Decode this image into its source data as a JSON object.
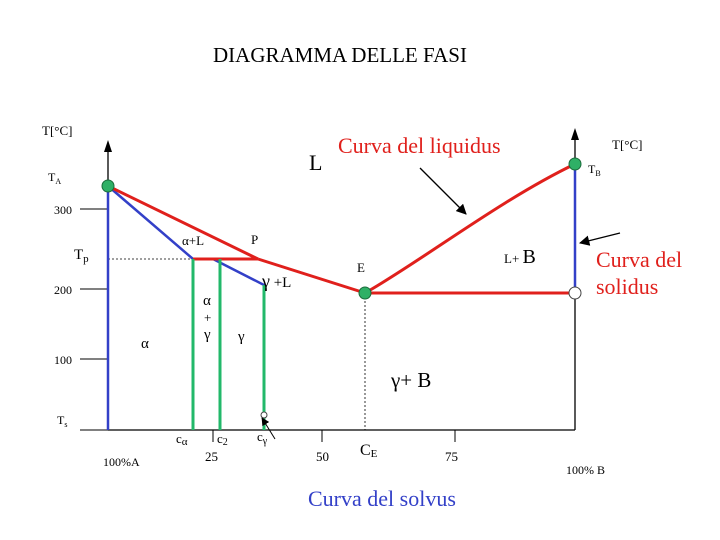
{
  "title": "DIAGRAMMA DELLE FASI",
  "axes": {
    "left_unit": "T[°C]",
    "right_unit": "T[°C]",
    "left_ticks": [
      "300",
      "200",
      "100"
    ],
    "x_ticks": [
      "25",
      "50",
      "75"
    ],
    "x_left_end": "100%A",
    "x_right_end": "100% B"
  },
  "temperatures": {
    "ta": "T",
    "ta_sub": "A",
    "tb": "T",
    "tb_sub": "B",
    "tp": "T",
    "tp_sub": "p",
    "ts": "T",
    "ts_sub": "s"
  },
  "labels": {
    "liquid": "L",
    "liquidus": "Curva del liquidus",
    "solidus_line1": "Curva del",
    "solidus_line2": "solidus",
    "solvus": "Curva del solvus",
    "alpha_l": "α+L",
    "point_p": "P",
    "point_e": "E",
    "gamma_l_sym": "γ",
    "gamma_l_rest": " +L",
    "l_b_l": "L+ ",
    "l_b_b": "B",
    "alpha_gamma_a": "α",
    "alpha_gamma_plus": "+",
    "alpha_gamma_g": "γ",
    "alpha": "α",
    "gamma": "γ",
    "gamma_b": "γ+ B",
    "c_alpha_c": "c",
    "c_alpha_sub": "α",
    "c2_c": "c",
    "c2_sub": "2",
    "c_gamma_c": "c",
    "c_gamma_sub": "γ",
    "ce_c": "C",
    "ce_sub": "E"
  },
  "colors": {
    "phase_lines": "#e0201c",
    "blue_lines": "#3340c8",
    "green_lines": "#22b86a",
    "markers": "#2fb066",
    "liquidus_text": "#e0201c",
    "solvus_text": "#3340c8"
  }
}
